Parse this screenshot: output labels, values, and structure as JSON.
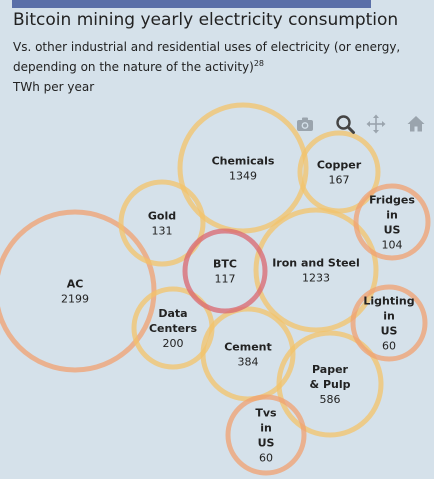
{
  "title": "Bitcoin mining yearly electricity consumption",
  "subtitle": {
    "text": "Vs. other industrial and residential uses of electricity (or energy, depending on the nature of the activity)",
    "footnote": "28",
    "unit_line": "TWh per year"
  },
  "toolbar": {
    "items": [
      {
        "name": "camera-icon",
        "label": "Download plot as png"
      },
      {
        "name": "zoom-icon",
        "label": "Zoom"
      },
      {
        "name": "pan-icon",
        "label": "Pan"
      },
      {
        "name": "home-icon",
        "label": "Reset axes"
      }
    ],
    "icon_color": "#9aa4ad",
    "active_color": "#444444"
  },
  "chart_data": {
    "type": "bubble",
    "unit": "TWh per year",
    "bubbles": [
      {
        "name": "AC",
        "lines": [
          "AC"
        ],
        "value": 2199,
        "color": "#f0a070"
      },
      {
        "name": "Chemicals",
        "lines": [
          "Chemicals"
        ],
        "value": 1349,
        "color": "#f3c36a"
      },
      {
        "name": "Iron and Steel",
        "lines": [
          "Iron and Steel"
        ],
        "value": 1233,
        "color": "#f3c36a"
      },
      {
        "name": "Paper & Pulp",
        "lines": [
          "Paper",
          "& Pulp"
        ],
        "value": 586,
        "color": "#f3c36a"
      },
      {
        "name": "Cement",
        "lines": [
          "Cement"
        ],
        "value": 384,
        "color": "#f3c36a"
      },
      {
        "name": "Data Centers",
        "lines": [
          "Data",
          "Centers"
        ],
        "value": 200,
        "color": "#f3c36a"
      },
      {
        "name": "Copper",
        "lines": [
          "Copper"
        ],
        "value": 167,
        "color": "#f3c36a"
      },
      {
        "name": "Gold",
        "lines": [
          "Gold"
        ],
        "value": 131,
        "color": "#f3c36a"
      },
      {
        "name": "BTC",
        "lines": [
          "BTC"
        ],
        "value": 117,
        "color": "#d9666f"
      },
      {
        "name": "Fridges in US",
        "lines": [
          "Fridges",
          "in",
          "US"
        ],
        "value": 104,
        "color": "#f0a070"
      },
      {
        "name": "Lighting in US",
        "lines": [
          "Lighting",
          "in",
          "US"
        ],
        "value": 60,
        "color": "#f0a070"
      },
      {
        "name": "Tvs in US",
        "lines": [
          "Tvs",
          "in",
          "US"
        ],
        "value": 60,
        "color": "#f0a070"
      }
    ]
  }
}
